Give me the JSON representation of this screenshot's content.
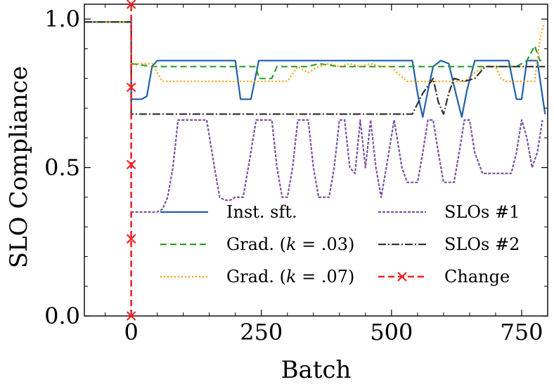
{
  "chart_data": {
    "type": "line",
    "xlabel": "Batch",
    "ylabel": "SLO Compliance",
    "xlim": [
      -90,
      800
    ],
    "ylim": [
      0.0,
      1.05
    ],
    "xticks": [
      0,
      250,
      500,
      750
    ],
    "xtick_labels": [
      "0",
      "250",
      "500",
      "750"
    ],
    "yticks": [
      0.0,
      0.5,
      1.0
    ],
    "ytick_labels": [
      "0.0",
      "0.5",
      "1.0"
    ],
    "legend_position": "lower-right",
    "change_x": 0,
    "series": [
      {
        "name": "Inst. sft.",
        "legend_label": "Inst. sft.",
        "color": "#1f5fa8",
        "dash": "",
        "marker": "none",
        "points": [
          [
            -90,
            0.99
          ],
          [
            0,
            0.99
          ],
          [
            0,
            0.73
          ],
          [
            20,
            0.73
          ],
          [
            30,
            0.74
          ],
          [
            40,
            0.84
          ],
          [
            50,
            0.86
          ],
          [
            200,
            0.86
          ],
          [
            210,
            0.73
          ],
          [
            230,
            0.73
          ],
          [
            245,
            0.86
          ],
          [
            520,
            0.86
          ],
          [
            540,
            0.86
          ],
          [
            550,
            0.75
          ],
          [
            560,
            0.67
          ],
          [
            570,
            0.76
          ],
          [
            580,
            0.84
          ],
          [
            595,
            0.86
          ],
          [
            610,
            0.85
          ],
          [
            625,
            0.74
          ],
          [
            635,
            0.67
          ],
          [
            645,
            0.76
          ],
          [
            660,
            0.86
          ],
          [
            700,
            0.86
          ],
          [
            725,
            0.86
          ],
          [
            740,
            0.73
          ],
          [
            750,
            0.73
          ],
          [
            760,
            0.86
          ],
          [
            780,
            0.86
          ],
          [
            795,
            0.68
          ]
        ]
      },
      {
        "name": "Grad. (k = .03)",
        "legend_label": "Grad. (",
        "legend_k": "k",
        "legend_suffix": " = .03)",
        "color": "#2ca02c",
        "dash": "9,5",
        "marker": "none",
        "points": [
          [
            -90,
            0.99
          ],
          [
            0,
            0.99
          ],
          [
            0,
            0.85
          ],
          [
            40,
            0.84
          ],
          [
            200,
            0.84
          ],
          [
            210,
            0.84
          ],
          [
            240,
            0.84
          ],
          [
            245,
            0.8
          ],
          [
            270,
            0.8
          ],
          [
            280,
            0.84
          ],
          [
            320,
            0.84
          ],
          [
            340,
            0.84
          ],
          [
            360,
            0.85
          ],
          [
            400,
            0.84
          ],
          [
            550,
            0.84
          ],
          [
            600,
            0.84
          ],
          [
            650,
            0.84
          ],
          [
            700,
            0.84
          ],
          [
            740,
            0.84
          ],
          [
            760,
            0.86
          ],
          [
            775,
            0.91
          ],
          [
            785,
            0.86
          ],
          [
            795,
            0.86
          ]
        ]
      },
      {
        "name": "Grad. (k = .07)",
        "legend_label": "Grad. (",
        "legend_k": "k",
        "legend_suffix": " = .07)",
        "color": "#f5a000",
        "dash": "2,3",
        "marker": "none",
        "points": [
          [
            -90,
            0.99
          ],
          [
            0,
            0.99
          ],
          [
            0,
            0.85
          ],
          [
            40,
            0.85
          ],
          [
            60,
            0.79
          ],
          [
            300,
            0.79
          ],
          [
            320,
            0.84
          ],
          [
            340,
            0.82
          ],
          [
            360,
            0.84
          ],
          [
            380,
            0.85
          ],
          [
            400,
            0.84
          ],
          [
            420,
            0.85
          ],
          [
            440,
            0.84
          ],
          [
            460,
            0.85
          ],
          [
            480,
            0.84
          ],
          [
            500,
            0.84
          ],
          [
            510,
            0.82
          ],
          [
            530,
            0.79
          ],
          [
            640,
            0.79
          ],
          [
            660,
            0.82
          ],
          [
            680,
            0.84
          ],
          [
            700,
            0.84
          ],
          [
            710,
            0.8
          ],
          [
            720,
            0.79
          ],
          [
            775,
            0.79
          ],
          [
            785,
            0.93
          ],
          [
            792,
            0.98
          ]
        ]
      },
      {
        "name": "SLOs #1",
        "legend_label": "SLOs #1",
        "color": "#7b52a3",
        "dash": "4,2",
        "marker": "none",
        "points": [
          [
            0,
            0.35
          ],
          [
            20,
            0.35
          ],
          [
            50,
            0.35
          ],
          [
            60,
            0.36
          ],
          [
            70,
            0.4
          ],
          [
            80,
            0.5
          ],
          [
            90,
            0.66
          ],
          [
            130,
            0.66
          ],
          [
            145,
            0.66
          ],
          [
            160,
            0.5
          ],
          [
            170,
            0.4
          ],
          [
            180,
            0.39
          ],
          [
            190,
            0.39
          ],
          [
            200,
            0.4
          ],
          [
            215,
            0.4
          ],
          [
            225,
            0.5
          ],
          [
            240,
            0.66
          ],
          [
            250,
            0.66
          ],
          [
            270,
            0.66
          ],
          [
            280,
            0.5
          ],
          [
            290,
            0.4
          ],
          [
            300,
            0.4
          ],
          [
            310,
            0.5
          ],
          [
            320,
            0.66
          ],
          [
            340,
            0.66
          ],
          [
            350,
            0.5
          ],
          [
            360,
            0.4
          ],
          [
            380,
            0.4
          ],
          [
            390,
            0.5
          ],
          [
            400,
            0.66
          ],
          [
            410,
            0.66
          ],
          [
            420,
            0.5
          ],
          [
            430,
            0.48
          ],
          [
            440,
            0.66
          ],
          [
            450,
            0.5
          ],
          [
            460,
            0.66
          ],
          [
            470,
            0.5
          ],
          [
            480,
            0.4
          ],
          [
            490,
            0.5
          ],
          [
            505,
            0.66
          ],
          [
            520,
            0.5
          ],
          [
            530,
            0.45
          ],
          [
            550,
            0.45
          ],
          [
            560,
            0.55
          ],
          [
            570,
            0.66
          ],
          [
            580,
            0.66
          ],
          [
            590,
            0.55
          ],
          [
            600,
            0.45
          ],
          [
            620,
            0.45
          ],
          [
            630,
            0.55
          ],
          [
            640,
            0.66
          ],
          [
            650,
            0.66
          ],
          [
            660,
            0.55
          ],
          [
            675,
            0.48
          ],
          [
            700,
            0.48
          ],
          [
            730,
            0.48
          ],
          [
            740,
            0.55
          ],
          [
            750,
            0.66
          ],
          [
            760,
            0.6
          ],
          [
            770,
            0.5
          ],
          [
            780,
            0.55
          ],
          [
            790,
            0.66
          ]
        ]
      },
      {
        "name": "SLOs #2",
        "legend_label": "SLOs #2",
        "color": "#333333",
        "dash": "11,3,2,3",
        "marker": "none",
        "points": [
          [
            -90,
            0.99
          ],
          [
            0,
            0.99
          ],
          [
            0,
            0.68
          ],
          [
            100,
            0.68
          ],
          [
            300,
            0.68
          ],
          [
            540,
            0.68
          ],
          [
            560,
            0.75
          ],
          [
            580,
            0.8
          ],
          [
            590,
            0.72
          ],
          [
            600,
            0.68
          ],
          [
            610,
            0.75
          ],
          [
            620,
            0.8
          ],
          [
            640,
            0.79
          ],
          [
            660,
            0.8
          ],
          [
            680,
            0.84
          ],
          [
            700,
            0.84
          ],
          [
            720,
            0.84
          ],
          [
            740,
            0.84
          ],
          [
            760,
            0.84
          ],
          [
            795,
            0.84
          ]
        ]
      },
      {
        "name": "Change",
        "legend_label": "Change",
        "color": "#ee2222",
        "dash": "9,5",
        "marker": "x",
        "points": [
          [
            0,
            0.0
          ],
          [
            0,
            1.05
          ]
        ],
        "marker_points": [
          [
            0,
            0.0
          ],
          [
            0,
            0.26
          ],
          [
            0,
            0.51
          ],
          [
            0,
            0.77
          ],
          [
            0,
            1.05
          ]
        ]
      }
    ]
  }
}
